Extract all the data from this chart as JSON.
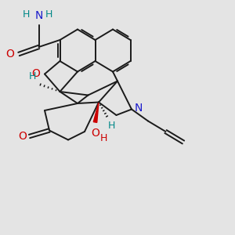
{
  "bg_color": "#e4e4e4",
  "bond_color": "#1a1a1a",
  "bond_lw": 1.4,
  "atom_O_color": "#cc0000",
  "atom_N_color": "#1a1acc",
  "atom_H_color": "#008888",
  "xlim": [
    0,
    10
  ],
  "ylim": [
    0,
    10
  ]
}
